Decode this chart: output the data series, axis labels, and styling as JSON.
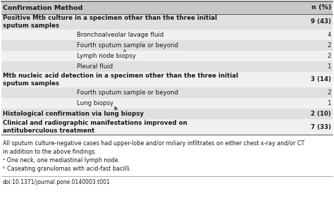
{
  "col1_header": "Confirmation Method",
  "col2_header": "n (%)",
  "rows": [
    {
      "text": "Positive Mtb culture in a specimen other than the three initial\nsputum samples",
      "value": "9 (43)",
      "indent": 0,
      "bold": true,
      "bg": "#e0e0e0",
      "superscript": ""
    },
    {
      "text": "Bronchoalveolar lavage fluid",
      "value": "4",
      "indent": 1,
      "bold": false,
      "bg": "#f0f0f0",
      "superscript": ""
    },
    {
      "text": "Fourth sputum sample or beyond",
      "value": "2",
      "indent": 1,
      "bold": false,
      "bg": "#e0e0e0",
      "superscript": ""
    },
    {
      "text": "Lymph node biopsy",
      "value": "2",
      "indent": 1,
      "bold": false,
      "bg": "#f0f0f0",
      "superscript": "a"
    },
    {
      "text": "Pleural fluid",
      "value": "1",
      "indent": 1,
      "bold": false,
      "bg": "#e0e0e0",
      "superscript": ""
    },
    {
      "text": "Mtb nucleic acid detection in a specimen other than the three initial\nsputum samples",
      "value": "3 (14)",
      "indent": 0,
      "bold": true,
      "bg": "#f0f0f0",
      "superscript": ""
    },
    {
      "text": "Fourth sputum sample or beyond",
      "value": "2",
      "indent": 1,
      "bold": false,
      "bg": "#e0e0e0",
      "superscript": ""
    },
    {
      "text": "Lung biopsy",
      "value": "1",
      "indent": 1,
      "bold": false,
      "bg": "#f0f0f0",
      "superscript": ""
    },
    {
      "text": "Histological confirmation via lung biopsy",
      "value": "2 (10)",
      "indent": 0,
      "bold": true,
      "bg": "#e0e0e0",
      "superscript": "b"
    },
    {
      "text": "Clinical and radiographic manifestations improved on\nantituberculous treatment",
      "value": "7 (33)",
      "indent": 0,
      "bold": true,
      "bg": "#f0f0f0",
      "superscript": ""
    }
  ],
  "footnote_lines": [
    "All sputum culture-negative cases had upper-lobe and/or miliary infiltrates on either chest x-ray and/or CT",
    "in addition to the above findings.",
    "ᵃ One neck, one mediastinal lymph node.",
    "ᵇ Caseating granulomas with acid-fast bacilli."
  ],
  "doi": "doi:10.1371/journal.pone.0140003.t001",
  "header_bg": "#c8c8c8",
  "text_color": "#1a1a1a",
  "font_size": 6.2,
  "header_font_size": 6.8,
  "footnote_font_size": 5.8,
  "doi_font_size": 5.5
}
